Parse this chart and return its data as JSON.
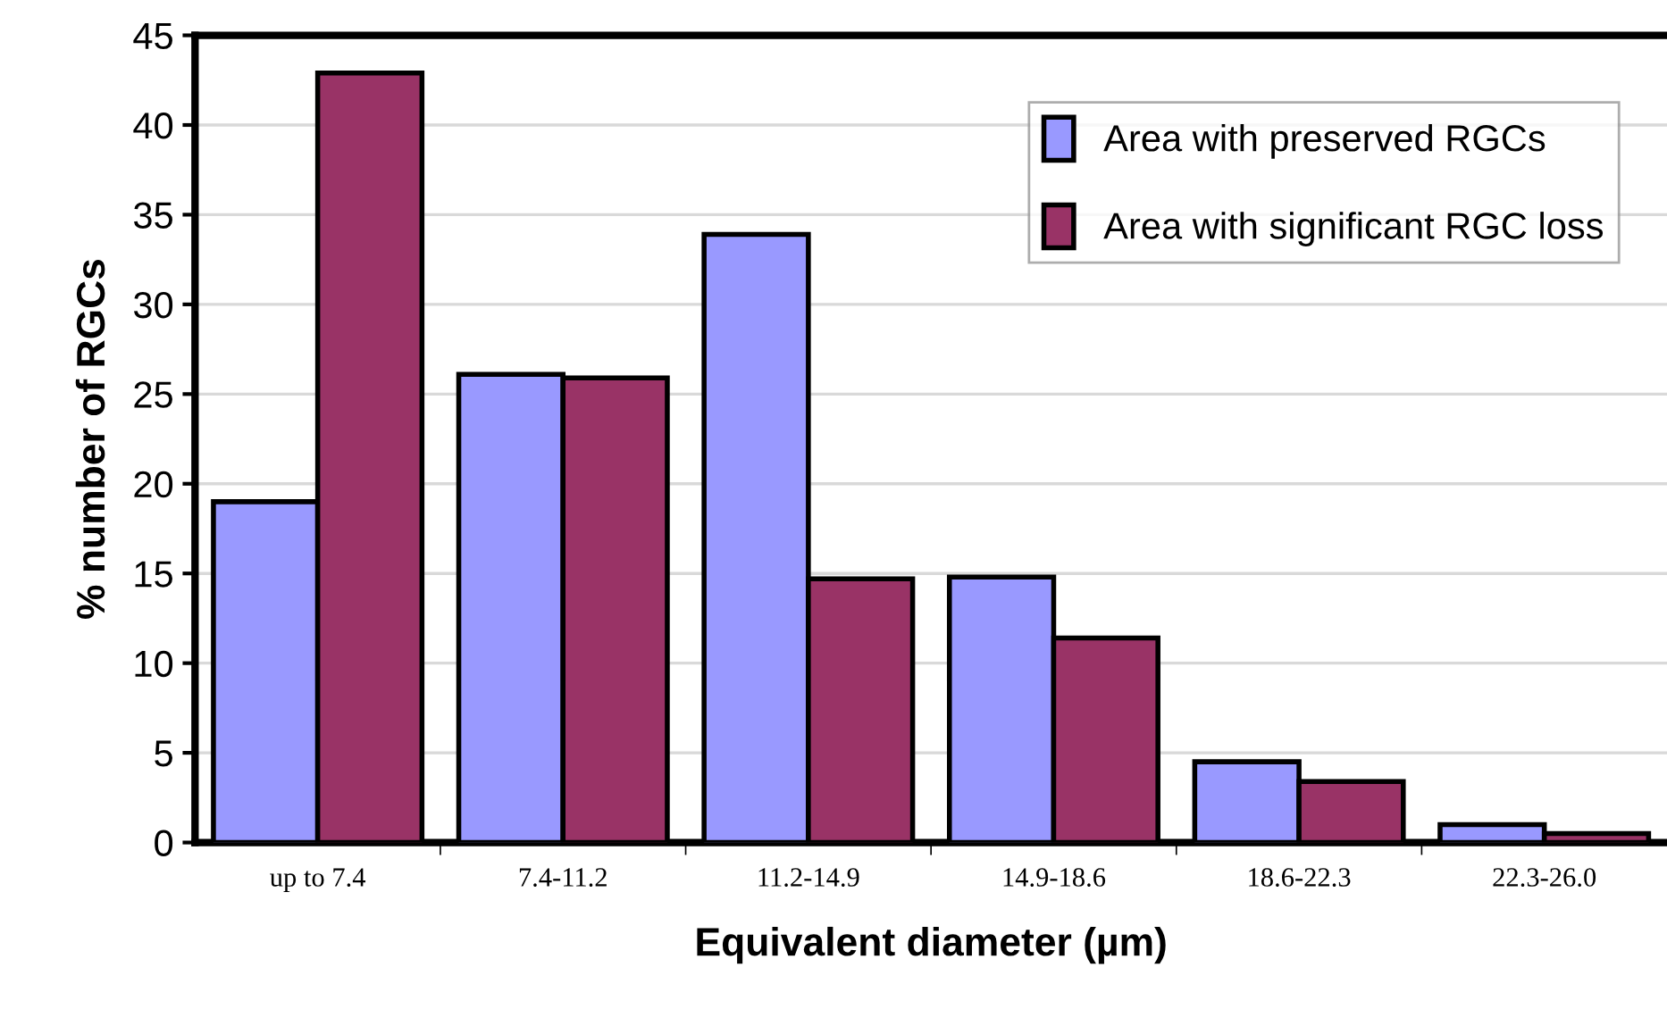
{
  "chart_data": {
    "type": "bar",
    "xlabel": "Equivalent diameter (µm)",
    "ylabel": "% number of RGCs",
    "categories": [
      "up to 7.4",
      "7.4-11.2",
      "11.2-14.9",
      "14.9-18.6",
      "18.6-22.3",
      "22.3-26.0"
    ],
    "series": [
      {
        "name": "Area with preserved RGCs",
        "color": "#9999ff",
        "values": [
          19.0,
          26.1,
          33.9,
          14.8,
          4.5,
          1.0
        ]
      },
      {
        "name": "Area with significant RGC loss",
        "color": "#993366",
        "values": [
          42.9,
          25.9,
          14.7,
          11.4,
          3.4,
          0.5
        ]
      }
    ],
    "ylim": [
      0,
      45
    ],
    "yticks": [
      0,
      5,
      10,
      15,
      20,
      25,
      30,
      35,
      40,
      45
    ],
    "grid": "y",
    "legend": "top right"
  }
}
